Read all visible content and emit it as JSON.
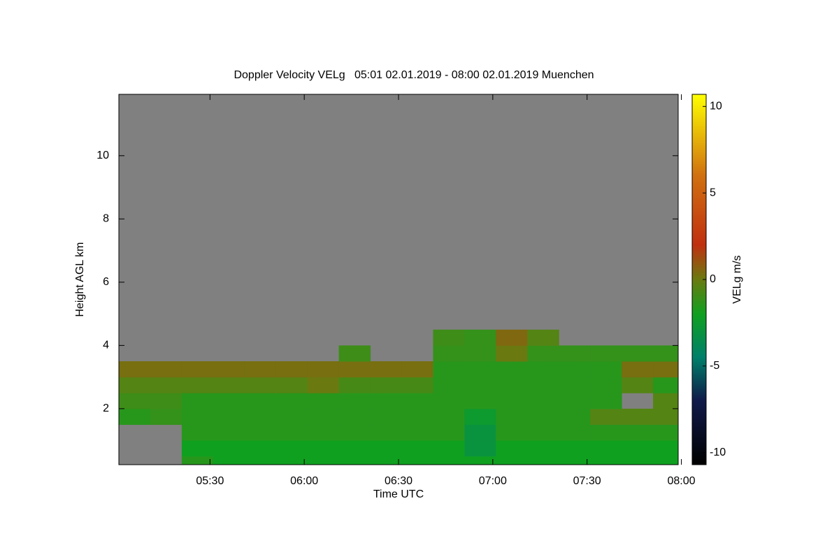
{
  "chart_data": {
    "type": "heatmap",
    "title": "Doppler Velocity VELg   05:01 02.01.2019 - 08:00 02.01.2019 Muenchen",
    "x_label": "Time UTC",
    "y_label": "Height AGL km",
    "colorbar_label": "VELg m/s",
    "xlim": [
      301,
      479
    ],
    "xticks": [
      {
        "value": 330,
        "label": "05:30"
      },
      {
        "value": 360,
        "label": "06:00"
      },
      {
        "value": 390,
        "label": "06:30"
      },
      {
        "value": 420,
        "label": "07:00"
      },
      {
        "value": 450,
        "label": "07:30"
      },
      {
        "value": 480,
        "label": "08:00"
      }
    ],
    "ylim": [
      0.23,
      11.94
    ],
    "yticks": [
      2,
      4,
      6,
      8,
      10
    ],
    "clim": [
      -10.7,
      10.7
    ],
    "cticks": [
      10,
      5,
      0,
      -5,
      -10
    ],
    "background": "#808080",
    "colorscale": [
      [
        -10.7,
        "#000000"
      ],
      [
        -7,
        "#101a4a"
      ],
      [
        -4.5,
        "#00806a"
      ],
      [
        -2,
        "#10a020"
      ],
      [
        0,
        "#6a7a10"
      ],
      [
        2,
        "#c03010"
      ],
      [
        6,
        "#d07010"
      ],
      [
        10.7,
        "#ffff00"
      ]
    ],
    "xbins": [
      301,
      311,
      321,
      331,
      341,
      351,
      361,
      371,
      381,
      391,
      401,
      411,
      421,
      431,
      441,
      451,
      461,
      471,
      479
    ],
    "ybins": [
      0.23,
      0.5,
      1,
      1.5,
      2,
      2.5,
      3,
      3.5,
      4,
      4.5
    ],
    "values": [
      [
        null,
        null,
        -1.5,
        -2,
        -2,
        -2,
        -2,
        -2,
        -2,
        -2,
        -2,
        -2,
        -2,
        -2,
        -2,
        -2,
        -2,
        -2
      ],
      [
        null,
        null,
        -2,
        -2,
        -2,
        -2,
        -2,
        -2,
        -2,
        -2,
        -2,
        -3,
        -2,
        -2,
        -2,
        -2,
        -2,
        -2
      ],
      [
        null,
        null,
        -1.5,
        -1.5,
        -1.5,
        -1.5,
        -1.5,
        -1.5,
        -1.5,
        -1.5,
        -1.5,
        -3,
        -1.5,
        -1.5,
        -1.5,
        -1.5,
        -1.5,
        -1.5
      ],
      [
        -1.5,
        -1.2,
        -1.5,
        -1.5,
        -1.5,
        -1.5,
        -1.5,
        -1.5,
        -1.5,
        -1.5,
        -1.5,
        -2.5,
        -1.5,
        -1.5,
        -1.5,
        -0.5,
        -0.5,
        -0.5
      ],
      [
        -1,
        -1,
        -1.5,
        -1.5,
        -1.5,
        -1.5,
        -1.5,
        -1.5,
        -1.5,
        -1.5,
        -1.5,
        -1.5,
        -1.5,
        -1.5,
        -1.5,
        -1.5,
        null,
        -0.5
      ],
      [
        -0.5,
        -0.5,
        -0.5,
        -0.5,
        -0.5,
        -0.5,
        0,
        -0.8,
        -0.8,
        -0.8,
        -1.5,
        -1.5,
        -1.5,
        -1.5,
        -1.5,
        -1.5,
        -0.5,
        -1.5
      ],
      [
        0.3,
        0.3,
        0.3,
        0.3,
        0.3,
        0.3,
        0.3,
        0.3,
        0.3,
        0.3,
        -1.5,
        -1.5,
        -1.5,
        -1.5,
        -1.5,
        -1.5,
        0.3,
        0.3
      ],
      [
        null,
        null,
        null,
        null,
        null,
        null,
        null,
        -1,
        null,
        null,
        -1.2,
        -1.2,
        0,
        -1.2,
        -1.2,
        -1.2,
        -1.2,
        -1.2
      ],
      [
        null,
        null,
        null,
        null,
        null,
        null,
        null,
        null,
        null,
        null,
        -1,
        -1.2,
        0.5,
        -0.5,
        null,
        null,
        null,
        null
      ]
    ]
  }
}
